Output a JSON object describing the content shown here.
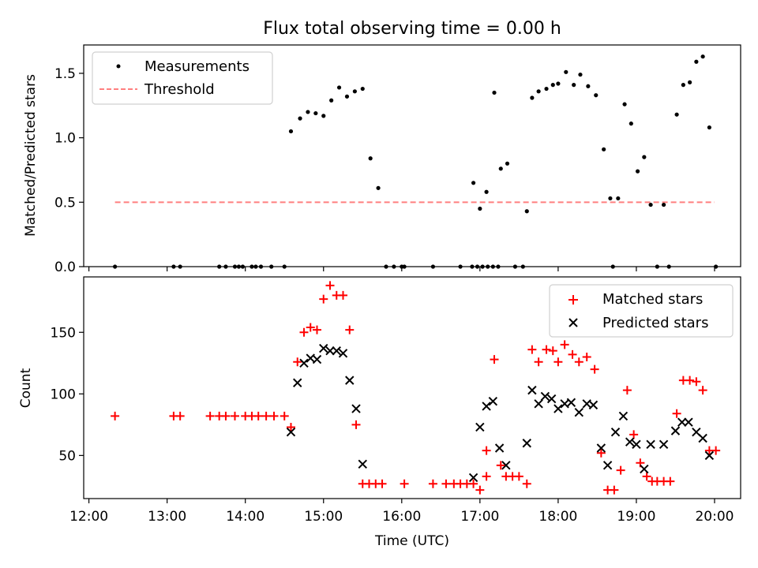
{
  "figure": {
    "title": "Flux total observing time = 0.00 h"
  },
  "chart_data": [
    {
      "type": "scatter",
      "panel": "top",
      "xlabel": "",
      "ylabel": "Matched/Predicted stars",
      "ylim": [
        0,
        1.72
      ],
      "yticks": [
        0.0,
        0.5,
        1.0,
        1.5
      ],
      "ytick_labels": [
        "0.0",
        "0.5",
        "1.0",
        "1.5"
      ],
      "grid": false,
      "legend_position": "top-left",
      "series": [
        {
          "name": "Measurements",
          "marker": "dot",
          "color": "#000000",
          "points": [
            [
              "12:20",
              0.0
            ],
            [
              "13:05",
              0.0
            ],
            [
              "13:10",
              0.0
            ],
            [
              "13:40",
              0.0
            ],
            [
              "13:45",
              0.0
            ],
            [
              "13:52",
              0.0
            ],
            [
              "13:55",
              0.0
            ],
            [
              "13:58",
              0.0
            ],
            [
              "14:05",
              0.0
            ],
            [
              "14:08",
              0.0
            ],
            [
              "14:12",
              0.0
            ],
            [
              "14:20",
              0.0
            ],
            [
              "14:30",
              0.0
            ],
            [
              "14:35",
              1.05
            ],
            [
              "14:42",
              1.15
            ],
            [
              "14:48",
              1.2
            ],
            [
              "14:54",
              1.19
            ],
            [
              "15:00",
              1.17
            ],
            [
              "15:06",
              1.29
            ],
            [
              "15:12",
              1.39
            ],
            [
              "15:18",
              1.32
            ],
            [
              "15:24",
              1.36
            ],
            [
              "15:30",
              1.38
            ],
            [
              "15:36",
              0.84
            ],
            [
              "15:42",
              0.61
            ],
            [
              "15:48",
              0.0
            ],
            [
              "15:54",
              0.0
            ],
            [
              "16:00",
              0.0
            ],
            [
              "16:02",
              0.0
            ],
            [
              "16:24",
              0.0
            ],
            [
              "16:45",
              0.0
            ],
            [
              "16:54",
              0.0
            ],
            [
              "16:58",
              0.0
            ],
            [
              "17:02",
              0.0
            ],
            [
              "17:06",
              0.0
            ],
            [
              "17:10",
              0.0
            ],
            [
              "17:14",
              0.0
            ],
            [
              "16:55",
              0.65
            ],
            [
              "17:00",
              0.45
            ],
            [
              "17:05",
              0.58
            ],
            [
              "17:11",
              1.35
            ],
            [
              "17:16",
              0.76
            ],
            [
              "17:21",
              0.8
            ],
            [
              "17:27",
              0.0
            ],
            [
              "17:33",
              0.0
            ],
            [
              "17:36",
              0.43
            ],
            [
              "17:40",
              1.31
            ],
            [
              "17:45",
              1.36
            ],
            [
              "17:51",
              1.38
            ],
            [
              "17:56",
              1.41
            ],
            [
              "18:00",
              1.42
            ],
            [
              "18:06",
              1.51
            ],
            [
              "18:12",
              1.41
            ],
            [
              "18:17",
              1.49
            ],
            [
              "18:23",
              1.4
            ],
            [
              "18:29",
              1.33
            ],
            [
              "18:35",
              0.91
            ],
            [
              "18:40",
              0.53
            ],
            [
              "18:42",
              0.0
            ],
            [
              "18:46",
              0.53
            ],
            [
              "18:51",
              1.26
            ],
            [
              "18:56",
              1.11
            ],
            [
              "19:01",
              0.74
            ],
            [
              "19:06",
              0.85
            ],
            [
              "19:11",
              0.48
            ],
            [
              "19:16",
              0.0
            ],
            [
              "19:21",
              0.48
            ],
            [
              "19:25",
              0.0
            ],
            [
              "19:31",
              1.18
            ],
            [
              "19:36",
              1.41
            ],
            [
              "19:41",
              1.43
            ],
            [
              "19:46",
              1.59
            ],
            [
              "19:51",
              1.63
            ],
            [
              "19:56",
              1.08
            ],
            [
              "20:01",
              0.0
            ]
          ]
        },
        {
          "name": "Threshold",
          "style": "dashed",
          "color": "#ff7f7f",
          "points": [
            [
              "12:20",
              0.5
            ],
            [
              "20:00",
              0.5
            ]
          ]
        }
      ]
    },
    {
      "type": "scatter",
      "panel": "bottom",
      "xlabel": "Time (UTC)",
      "ylabel": "Count",
      "xlim": [
        "11:56",
        "20:20"
      ],
      "ylim": [
        15,
        195
      ],
      "yticks": [
        50,
        100,
        150
      ],
      "ytick_labels": [
        "50",
        "100",
        "150"
      ],
      "xticks": [
        "12:00",
        "13:00",
        "14:00",
        "15:00",
        "16:00",
        "17:00",
        "18:00",
        "19:00",
        "20:00"
      ],
      "xtick_labels": [
        "12:00",
        "13:00",
        "14:00",
        "15:00",
        "16:00",
        "17:00",
        "18:00",
        "19:00",
        "20:00"
      ],
      "grid": false,
      "legend_position": "top-right",
      "series": [
        {
          "name": "Matched stars",
          "marker": "plus",
          "color": "#ff0000",
          "points": [
            [
              "12:20",
              82
            ],
            [
              "13:05",
              82
            ],
            [
              "13:10",
              82
            ],
            [
              "13:33",
              82
            ],
            [
              "13:40",
              82
            ],
            [
              "13:45",
              82
            ],
            [
              "13:52",
              82
            ],
            [
              "14:00",
              82
            ],
            [
              "14:05",
              82
            ],
            [
              "14:10",
              82
            ],
            [
              "14:16",
              82
            ],
            [
              "14:22",
              82
            ],
            [
              "14:30",
              82
            ],
            [
              "14:35",
              73
            ],
            [
              "14:40",
              126
            ],
            [
              "14:45",
              150
            ],
            [
              "14:50",
              154
            ],
            [
              "14:55",
              152
            ],
            [
              "15:00",
              177
            ],
            [
              "15:05",
              188
            ],
            [
              "15:10",
              180
            ],
            [
              "15:15",
              180
            ],
            [
              "15:20",
              152
            ],
            [
              "15:25",
              75
            ],
            [
              "15:30",
              27
            ],
            [
              "15:35",
              27
            ],
            [
              "15:40",
              27
            ],
            [
              "15:45",
              27
            ],
            [
              "16:02",
              27
            ],
            [
              "16:24",
              27
            ],
            [
              "16:34",
              27
            ],
            [
              "16:40",
              27
            ],
            [
              "16:45",
              27
            ],
            [
              "16:50",
              27
            ],
            [
              "16:55",
              27
            ],
            [
              "17:00",
              22
            ],
            [
              "17:05",
              33
            ],
            [
              "17:05",
              54
            ],
            [
              "17:11",
              128
            ],
            [
              "17:16",
              42
            ],
            [
              "17:20",
              33
            ],
            [
              "17:25",
              33
            ],
            [
              "17:30",
              33
            ],
            [
              "17:36",
              27
            ],
            [
              "17:40",
              136
            ],
            [
              "17:45",
              126
            ],
            [
              "17:51",
              136
            ],
            [
              "17:56",
              135
            ],
            [
              "18:00",
              126
            ],
            [
              "18:05",
              140
            ],
            [
              "18:11",
              132
            ],
            [
              "18:16",
              126
            ],
            [
              "18:22",
              130
            ],
            [
              "18:28",
              120
            ],
            [
              "18:33",
              52
            ],
            [
              "18:38",
              22
            ],
            [
              "18:43",
              22
            ],
            [
              "18:48",
              38
            ],
            [
              "18:53",
              103
            ],
            [
              "18:58",
              67
            ],
            [
              "19:03",
              44
            ],
            [
              "19:08",
              33
            ],
            [
              "19:12",
              29
            ],
            [
              "19:16",
              29
            ],
            [
              "19:21",
              29
            ],
            [
              "19:26",
              29
            ],
            [
              "19:31",
              84
            ],
            [
              "19:36",
              111
            ],
            [
              "19:41",
              111
            ],
            [
              "19:46",
              110
            ],
            [
              "19:51",
              103
            ],
            [
              "19:56",
              54
            ],
            [
              "20:01",
              54
            ]
          ]
        },
        {
          "name": "Predicted stars",
          "marker": "x",
          "color": "#000000",
          "points": [
            [
              "14:35",
              69
            ],
            [
              "14:40",
              109
            ],
            [
              "14:45",
              125
            ],
            [
              "14:50",
              129
            ],
            [
              "14:55",
              128
            ],
            [
              "15:00",
              137
            ],
            [
              "15:05",
              135
            ],
            [
              "15:10",
              135
            ],
            [
              "15:15",
              133
            ],
            [
              "15:20",
              111
            ],
            [
              "15:25",
              88
            ],
            [
              "15:30",
              43
            ],
            [
              "16:55",
              32
            ],
            [
              "17:00",
              73
            ],
            [
              "17:05",
              90
            ],
            [
              "17:10",
              94
            ],
            [
              "17:15",
              56
            ],
            [
              "17:20",
              42
            ],
            [
              "17:36",
              60
            ],
            [
              "17:40",
              103
            ],
            [
              "17:45",
              92
            ],
            [
              "17:50",
              98
            ],
            [
              "17:55",
              96
            ],
            [
              "18:00",
              88
            ],
            [
              "18:05",
              92
            ],
            [
              "18:10",
              93
            ],
            [
              "18:16",
              85
            ],
            [
              "18:22",
              92
            ],
            [
              "18:27",
              91
            ],
            [
              "18:33",
              56
            ],
            [
              "18:38",
              42
            ],
            [
              "18:44",
              69
            ],
            [
              "18:50",
              82
            ],
            [
              "18:55",
              61
            ],
            [
              "19:00",
              59
            ],
            [
              "19:06",
              39
            ],
            [
              "19:11",
              59
            ],
            [
              "19:21",
              59
            ],
            [
              "19:30",
              70
            ],
            [
              "19:35",
              77
            ],
            [
              "19:40",
              77
            ],
            [
              "19:46",
              69
            ],
            [
              "19:51",
              64
            ],
            [
              "19:56",
              50
            ]
          ]
        }
      ]
    }
  ]
}
